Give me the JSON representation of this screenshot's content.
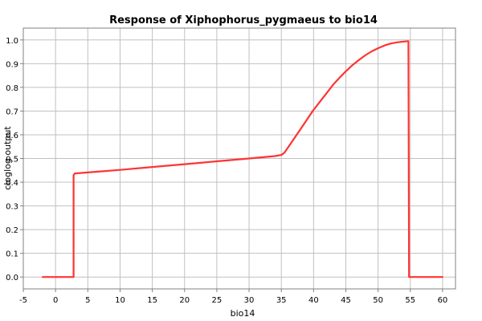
{
  "chart_data": {
    "type": "line",
    "title": "Response of Xiphophorus_pygmaeus to bio14",
    "xlabel": "bio14",
    "ylabel": "cloglog output",
    "xlim": [
      -5,
      62
    ],
    "ylim": [
      -0.05,
      1.05
    ],
    "xticks": [
      -5,
      0,
      5,
      10,
      15,
      20,
      25,
      30,
      35,
      40,
      45,
      50,
      55,
      60
    ],
    "yticks": [
      0.0,
      0.1,
      0.2,
      0.3,
      0.4,
      0.5,
      0.6,
      0.7,
      0.8,
      0.9,
      1.0
    ],
    "ytick_labels": [
      "0.0",
      "0.1",
      "0.2",
      "0.3",
      "0.4",
      "0.5",
      "0.6",
      "0.7",
      "0.8",
      "0.9",
      "1.0"
    ],
    "grid": true,
    "legend": "none",
    "series": [
      {
        "color": "#ff3333",
        "x": [
          -2,
          2.8,
          2.8,
          3,
          5,
          10,
          15,
          20,
          25,
          30,
          34,
          35,
          35.5,
          36,
          37,
          38,
          39,
          40,
          41,
          42,
          43,
          44,
          45,
          46,
          47,
          48,
          49,
          50,
          51,
          52,
          53,
          54,
          54.7,
          54.8,
          55,
          60
        ],
        "y": [
          0.0,
          0.0,
          0.43,
          0.437,
          0.441,
          0.452,
          0.464,
          0.476,
          0.488,
          0.5,
          0.51,
          0.515,
          0.525,
          0.545,
          0.585,
          0.625,
          0.665,
          0.705,
          0.74,
          0.775,
          0.81,
          0.84,
          0.868,
          0.893,
          0.915,
          0.935,
          0.952,
          0.965,
          0.977,
          0.985,
          0.99,
          0.993,
          0.995,
          0.0,
          0.0,
          0.0
        ]
      }
    ]
  }
}
